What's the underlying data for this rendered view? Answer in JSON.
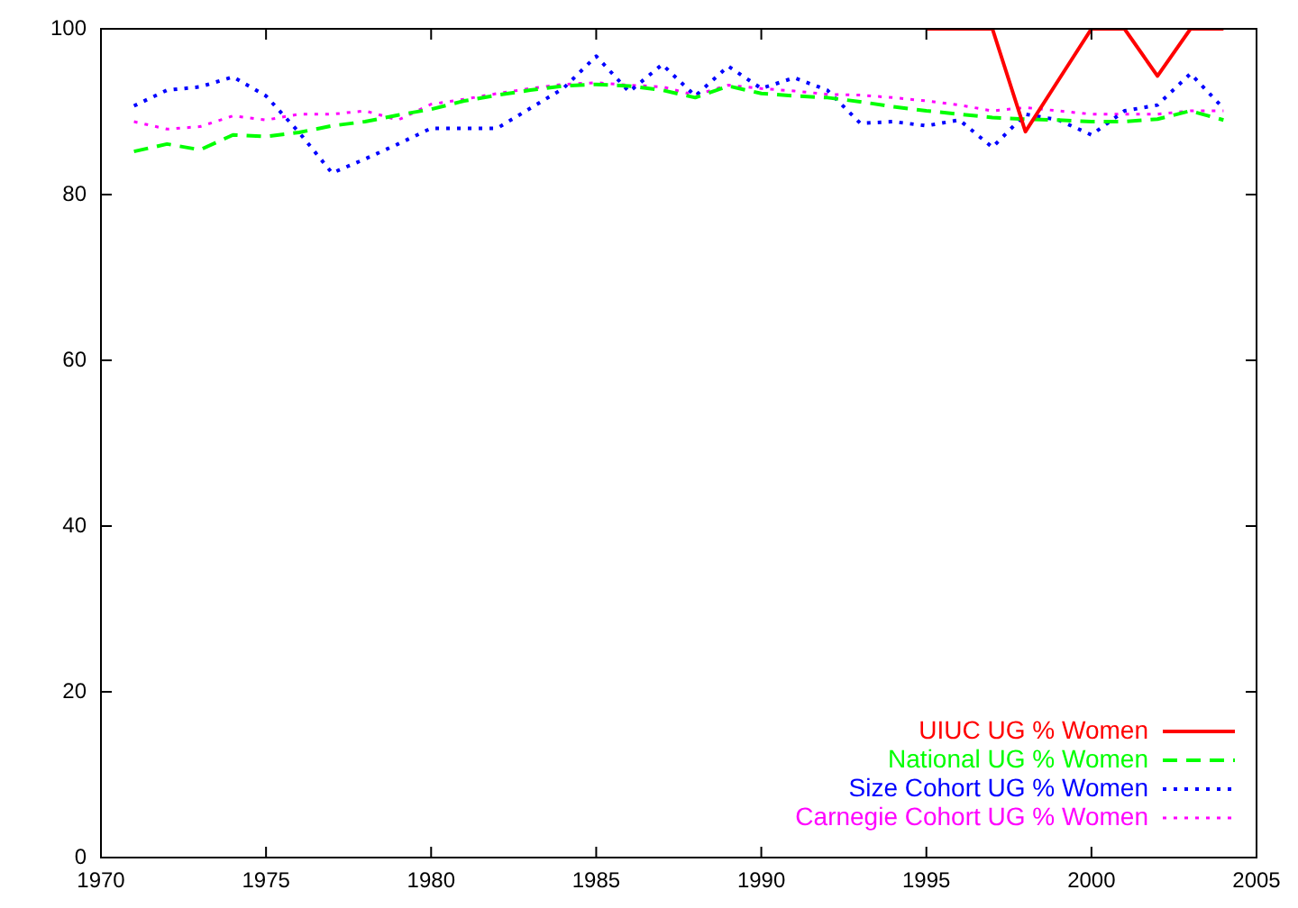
{
  "chart_data": {
    "type": "line",
    "x": [
      1971,
      1972,
      1973,
      1974,
      1975,
      1976,
      1977,
      1978,
      1979,
      1980,
      1981,
      1982,
      1983,
      1984,
      1985,
      1986,
      1987,
      1988,
      1989,
      1990,
      1991,
      1992,
      1993,
      1994,
      1995,
      1996,
      1997,
      1998,
      1999,
      2000,
      2001,
      2002,
      2003,
      2004
    ],
    "series": [
      {
        "name": "UIUC UG % Women",
        "color": "#ff0000",
        "line_style": "solid",
        "x": [
          1995,
          1996,
          1997,
          1998,
          1999,
          2000,
          2001,
          2002,
          2003,
          2004
        ],
        "values": [
          100,
          100,
          100,
          87.6,
          93.8,
          100,
          100,
          94.3,
          100,
          100
        ]
      },
      {
        "name": "National UG % Women",
        "color": "#00ff00",
        "line_style": "dashed",
        "values": [
          85.2,
          86.1,
          85.4,
          87.2,
          87.0,
          87.5,
          88.3,
          88.8,
          89.6,
          90.3,
          91.3,
          92.0,
          92.6,
          93.1,
          93.3,
          93.1,
          92.6,
          91.7,
          93.1,
          92.2,
          91.9,
          91.7,
          91.2,
          90.6,
          90.1,
          89.7,
          89.3,
          89.1,
          89.0,
          88.8,
          88.8,
          89.1,
          90.1,
          89.0
        ]
      },
      {
        "name": "Size Cohort UG % Women",
        "color": "#0000ff",
        "line_style": "dotted",
        "values": [
          90.7,
          92.6,
          93.0,
          94.2,
          91.9,
          87.5,
          82.6,
          84.3,
          86.1,
          88.0,
          88.0,
          88.0,
          90.4,
          92.8,
          96.7,
          92.4,
          95.7,
          91.9,
          95.5,
          92.8,
          94.1,
          92.6,
          88.6,
          88.8,
          88.3,
          89.0,
          85.7,
          89.7,
          89.0,
          87.2,
          90.1,
          90.8,
          94.6,
          90.4
        ]
      },
      {
        "name": "Carnegie Cohort UG % Women",
        "color": "#ff00ff",
        "line_style": "dotted",
        "values": [
          88.8,
          87.9,
          88.2,
          89.5,
          89.0,
          89.7,
          89.7,
          90.1,
          89.0,
          90.9,
          91.5,
          92.2,
          92.8,
          93.3,
          93.5,
          93.2,
          93.0,
          92.0,
          93.2,
          92.8,
          92.5,
          92.1,
          92.0,
          91.7,
          91.3,
          90.8,
          90.1,
          90.5,
          90.1,
          89.7,
          89.7,
          89.7,
          90.1,
          90.1
        ]
      }
    ],
    "xlim": [
      1970,
      2005
    ],
    "xticks": [
      1970,
      1975,
      1980,
      1985,
      1990,
      1995,
      2000,
      2005
    ],
    "ylim": [
      0,
      100
    ],
    "yticks": [
      0,
      20,
      40,
      60,
      80,
      100
    ],
    "grid": false,
    "legend": "bottom right",
    "marker": "none"
  }
}
